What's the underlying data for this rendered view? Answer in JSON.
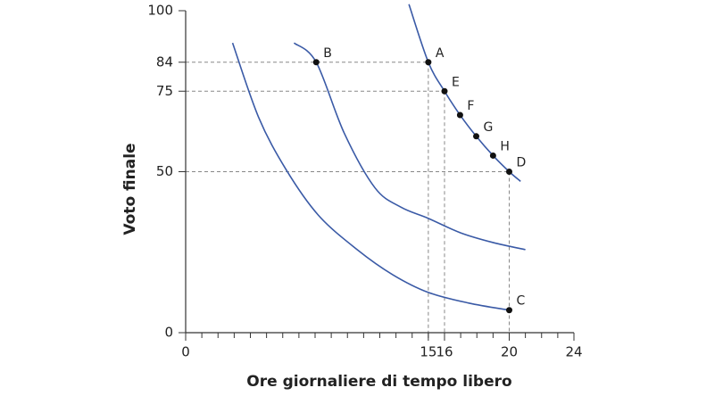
{
  "chart_data": {
    "type": "line",
    "x_label": "Ore giornaliere di tempo libero",
    "y_label": "Voto finale",
    "xlim": [
      0,
      24
    ],
    "xticks": [
      0,
      15,
      16,
      20,
      24
    ],
    "xminor_ticks": [
      0,
      1,
      2,
      3,
      4,
      5,
      6,
      7,
      8,
      9,
      10,
      11,
      12,
      13,
      14,
      15,
      16,
      17,
      18,
      19,
      20,
      21,
      22,
      23,
      24
    ],
    "ylim": [
      0,
      100
    ],
    "yticks": [
      0,
      50,
      75,
      84,
      100
    ],
    "grid": false,
    "series": [
      {
        "color": "#3a5aa6",
        "x": [
          2.9,
          4.5,
          6.2,
          8.2,
          10.6,
          12.8,
          15,
          17.5,
          20
        ],
        "y": [
          90,
          67,
          50.7,
          36.5,
          25.8,
          18,
          12.5,
          9.2,
          7
        ]
      },
      {
        "color": "#3a5aa6",
        "x": [
          6.7,
          8.07,
          9.8,
          11.7,
          13.3,
          15,
          17,
          19,
          21
        ],
        "y": [
          90,
          84,
          62,
          45,
          39,
          35.5,
          31,
          28,
          25.8
        ]
      },
      {
        "color": "#3a5aa6",
        "x": [
          13.8,
          15,
          16,
          16.96,
          17.96,
          19,
          20,
          20.7
        ],
        "y": [
          102,
          84,
          75,
          67.6,
          61,
          55,
          50,
          47
        ]
      }
    ],
    "points": [
      {
        "label": "A",
        "x": 15,
        "y": 84,
        "dashed_to_x_axis": true,
        "dashed_to_y_axis": true
      },
      {
        "label": "B",
        "x": 8.07,
        "y": 84,
        "dashed_to_x_axis": false,
        "dashed_to_y_axis": false
      },
      {
        "label": "E",
        "x": 16,
        "y": 75,
        "dashed_to_x_axis": true,
        "dashed_to_y_axis": true
      },
      {
        "label": "F",
        "x": 16.96,
        "y": 67.6,
        "dashed_to_x_axis": false,
        "dashed_to_y_axis": false
      },
      {
        "label": "G",
        "x": 17.96,
        "y": 61,
        "dashed_to_x_axis": false,
        "dashed_to_y_axis": false
      },
      {
        "label": "H",
        "x": 19,
        "y": 55,
        "dashed_to_x_axis": false,
        "dashed_to_y_axis": false
      },
      {
        "label": "D",
        "x": 20,
        "y": 50,
        "dashed_to_x_axis": true,
        "dashed_to_y_axis": true
      },
      {
        "label": "C",
        "x": 20,
        "y": 7,
        "dashed_to_x_axis": false,
        "dashed_to_y_axis": false
      }
    ]
  }
}
